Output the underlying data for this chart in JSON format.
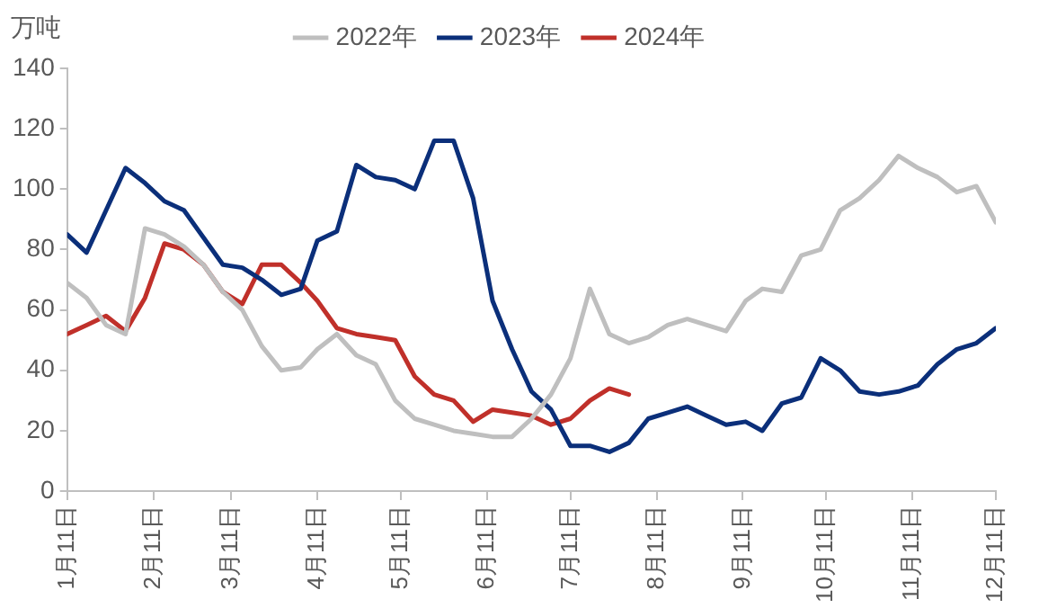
{
  "chart_data": {
    "type": "line",
    "ylabel": "万吨",
    "x": [
      "--01-11",
      "--01-18",
      "--01-25",
      "--02-01",
      "--02-08",
      "--02-15",
      "--02-22",
      "--03-01",
      "--03-08",
      "--03-15",
      "--03-22",
      "--03-29",
      "--04-05",
      "--04-11",
      "--04-18",
      "--04-25",
      "--05-02",
      "--05-09",
      "--05-16",
      "--05-23",
      "--05-30",
      "--06-06",
      "--06-13",
      "--06-20",
      "--06-27",
      "--07-04",
      "--07-11",
      "--07-18",
      "--07-25",
      "--08-01",
      "--08-08",
      "--08-15",
      "--08-22",
      "--08-29",
      "--09-05",
      "--09-12",
      "--09-18",
      "--09-25",
      "--10-02",
      "--10-09",
      "--10-16",
      "--10-23",
      "--10-30",
      "--11-06",
      "--11-13",
      "--11-20",
      "--11-27",
      "--12-04",
      "--12-11"
    ],
    "series": [
      {
        "name": "2022年",
        "color": "#bfbfbf",
        "values": [
          69,
          64,
          55,
          52,
          87,
          85,
          81,
          75,
          66,
          60,
          48,
          40,
          41,
          47,
          52,
          45,
          42,
          30,
          24,
          22,
          20,
          19,
          18,
          18,
          24,
          32,
          44,
          67,
          52,
          49,
          51,
          55,
          57,
          55,
          53,
          63,
          67,
          66,
          78,
          80,
          93,
          97,
          103,
          111,
          107,
          104,
          99,
          101,
          89
        ]
      },
      {
        "name": "2023年",
        "color": "#0b2f7a",
        "values": [
          85,
          79,
          93,
          107,
          102,
          96,
          93,
          84,
          75,
          74,
          70,
          65,
          67,
          83,
          86,
          108,
          104,
          103,
          100,
          116,
          116,
          97,
          63,
          47,
          33,
          27,
          15,
          15,
          13,
          16,
          24,
          26,
          28,
          25,
          22,
          23,
          20,
          29,
          31,
          44,
          40,
          33,
          32,
          33,
          35,
          42,
          47,
          49,
          54
        ]
      },
      {
        "name": "2024年",
        "color": "#c0302a",
        "x": [
          "--01-11",
          "--01-18",
          "--01-25",
          "--02-01",
          "--02-08",
          "--02-15",
          "--02-22",
          "--03-01",
          "--03-08",
          "--03-15",
          "--03-22",
          "--03-29",
          "--04-05",
          "--04-11",
          "--04-18",
          "--04-25",
          "--05-02",
          "--05-09",
          "--05-16",
          "--05-23",
          "--05-30",
          "--06-06",
          "--06-13",
          "--06-20",
          "--06-27",
          "--07-04",
          "--07-11",
          "--07-18",
          "--07-25",
          "--08-01"
        ],
        "values": [
          52,
          55,
          58,
          53,
          64,
          82,
          80,
          75,
          66,
          62,
          75,
          75,
          69,
          63,
          54,
          52,
          51,
          50,
          38,
          32,
          30,
          23,
          27,
          26,
          25,
          22,
          24,
          30,
          34,
          32
        ]
      }
    ],
    "xlim": [
      "--01-11",
      "--12-11"
    ],
    "xticks": [
      {
        "value": "--01-11",
        "label": "1月11日"
      },
      {
        "value": "--02-11",
        "label": "2月11日"
      },
      {
        "value": "--03-11",
        "label": "3月11日"
      },
      {
        "value": "--04-11",
        "label": "4月11日"
      },
      {
        "value": "--05-11",
        "label": "5月11日"
      },
      {
        "value": "--06-11",
        "label": "6月11日"
      },
      {
        "value": "--07-11",
        "label": "7月11日"
      },
      {
        "value": "--08-11",
        "label": "8月11日"
      },
      {
        "value": "--09-11",
        "label": "9月11日"
      },
      {
        "value": "--10-11",
        "label": "10月11日"
      },
      {
        "value": "--11-11",
        "label": "11月11日"
      },
      {
        "value": "--12-11",
        "label": "12月11日"
      }
    ],
    "ylim": [
      0,
      140
    ],
    "yticks": [
      0,
      20,
      40,
      60,
      80,
      100,
      120,
      140
    ],
    "grid": false,
    "legend": "top",
    "marker": "none",
    "line_style": "solid"
  }
}
